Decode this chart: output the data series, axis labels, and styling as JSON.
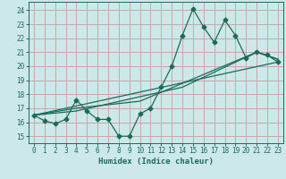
{
  "title": "",
  "xlabel": "Humidex (Indice chaleur)",
  "bg_color": "#cce8e8",
  "grid_color": "#c8a8a8",
  "line_color": "#1a6b5a",
  "xlim": [
    -0.5,
    23.5
  ],
  "ylim": [
    14.5,
    24.6
  ],
  "xticks": [
    0,
    1,
    2,
    3,
    4,
    5,
    6,
    7,
    8,
    9,
    10,
    11,
    12,
    13,
    14,
    15,
    16,
    17,
    18,
    19,
    20,
    21,
    22,
    23
  ],
  "yticks": [
    15,
    16,
    17,
    18,
    19,
    20,
    21,
    22,
    23,
    24
  ],
  "series1_x": [
    0,
    1,
    2,
    3,
    4,
    5,
    6,
    7,
    8,
    9,
    10,
    11,
    12,
    13,
    14,
    15,
    16,
    17,
    18,
    19,
    20,
    21,
    22,
    23
  ],
  "series1_y": [
    16.5,
    16.1,
    15.9,
    16.2,
    17.6,
    16.8,
    16.2,
    16.2,
    15.0,
    15.0,
    16.6,
    17.0,
    18.5,
    20.0,
    22.2,
    24.1,
    22.8,
    21.7,
    23.3,
    22.2,
    20.6,
    21.0,
    20.8,
    20.3
  ],
  "series2_x": [
    0,
    23
  ],
  "series2_y": [
    16.5,
    20.3
  ],
  "series3_x": [
    0,
    4,
    10,
    21,
    23
  ],
  "series3_y": [
    16.5,
    17.0,
    17.5,
    21.0,
    20.5
  ],
  "series4_x": [
    0,
    4,
    14,
    21,
    23
  ],
  "series4_y": [
    16.5,
    16.8,
    18.5,
    21.0,
    20.5
  ]
}
